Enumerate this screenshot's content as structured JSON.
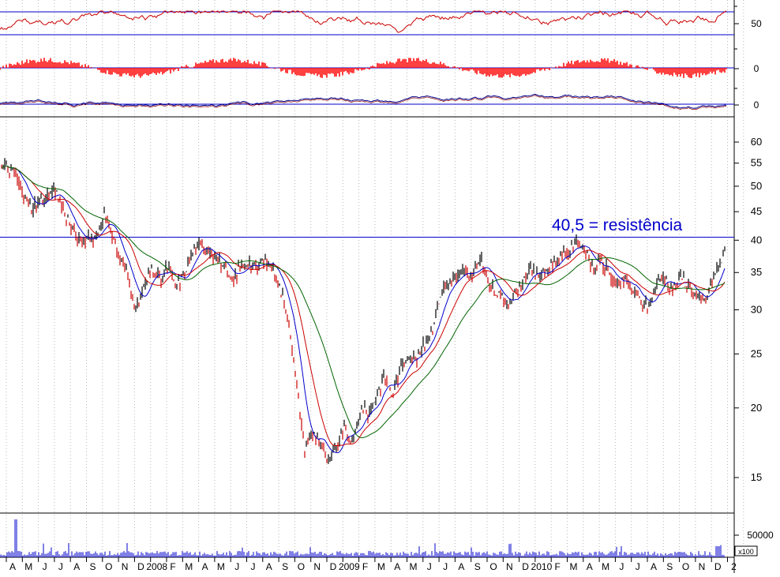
{
  "chart_data": {
    "type": "line",
    "annotation": "40,5 = resistência",
    "resistance_level": 40.5,
    "month_labels": [
      "A",
      "M",
      "J",
      "J",
      "A",
      "S",
      "O",
      "N",
      "D",
      "2008",
      "F",
      "M",
      "A",
      "M",
      "J",
      "J",
      "A",
      "S",
      "O",
      "N",
      "D",
      "2009",
      "F",
      "M",
      "A",
      "M",
      "J",
      "J",
      "A",
      "S",
      "O",
      "N",
      "D",
      "2010",
      "F",
      "M",
      "A",
      "M",
      "J",
      "J",
      "A",
      "S",
      "O",
      "N",
      "D",
      "2"
    ],
    "price_axis": {
      "scale": "log",
      "ticks": [
        60,
        55,
        50,
        45,
        40,
        35,
        30,
        25,
        20,
        15
      ],
      "tick_labels": [
        "60",
        "55",
        "50",
        "45",
        "40",
        "35",
        "30",
        "25",
        "20",
        "15"
      ]
    },
    "indicator_panels": [
      {
        "name": "oscillator",
        "tick_label": "50",
        "color": "#cc0000",
        "levels": [
          70,
          30
        ]
      },
      {
        "name": "histogram",
        "tick_label": "0",
        "color": "#ff0000"
      },
      {
        "name": "signal",
        "tick_label": "0",
        "color": "#00008b"
      }
    ],
    "volume_axis": {
      "tick_labels": [
        "50000"
      ],
      "multiplier_label": "x100"
    },
    "price_series": [
      {
        "m": 0,
        "v": 54.0
      },
      {
        "m": 0.5,
        "v": 52.5
      },
      {
        "m": 1,
        "v": 47.5
      },
      {
        "m": 1.5,
        "v": 45.8
      },
      {
        "m": 2,
        "v": 47.0
      },
      {
        "m": 2.5,
        "v": 47.5
      },
      {
        "m": 3,
        "v": 49.0
      },
      {
        "m": 3.5,
        "v": 45.0
      },
      {
        "m": 4,
        "v": 42.0
      },
      {
        "m": 4.5,
        "v": 39.8
      },
      {
        "m": 5,
        "v": 40.2
      },
      {
        "m": 5.5,
        "v": 40.8
      },
      {
        "m": 6,
        "v": 44.5
      },
      {
        "m": 6.5,
        "v": 41.0
      },
      {
        "m": 7,
        "v": 37.0
      },
      {
        "m": 7.5,
        "v": 34.5
      },
      {
        "m": 8,
        "v": 30.0
      },
      {
        "m": 8.5,
        "v": 33.0
      },
      {
        "m": 9,
        "v": 35.5
      },
      {
        "m": 9.5,
        "v": 34.0
      },
      {
        "m": 10,
        "v": 36.0
      },
      {
        "m": 10.5,
        "v": 32.8
      },
      {
        "m": 11,
        "v": 35.0
      },
      {
        "m": 11.5,
        "v": 38.0
      },
      {
        "m": 12,
        "v": 39.0
      },
      {
        "m": 12.5,
        "v": 38.5
      },
      {
        "m": 13,
        "v": 37.5
      },
      {
        "m": 13.5,
        "v": 35.5
      },
      {
        "m": 14,
        "v": 33.5
      },
      {
        "m": 14.5,
        "v": 36.0
      },
      {
        "m": 15,
        "v": 36.5
      },
      {
        "m": 15.5,
        "v": 35.5
      },
      {
        "m": 16,
        "v": 36.8
      },
      {
        "m": 16.5,
        "v": 36.0
      },
      {
        "m": 17,
        "v": 32.5
      },
      {
        "m": 17.5,
        "v": 29.0
      },
      {
        "m": 18,
        "v": 22.0
      },
      {
        "m": 18.5,
        "v": 17.0
      },
      {
        "m": 19,
        "v": 18.0
      },
      {
        "m": 19.5,
        "v": 17.5
      },
      {
        "m": 20,
        "v": 15.8
      },
      {
        "m": 20.5,
        "v": 17.0
      },
      {
        "m": 21,
        "v": 18.5
      },
      {
        "m": 21.5,
        "v": 17.2
      },
      {
        "m": 22,
        "v": 20.0
      },
      {
        "m": 22.5,
        "v": 19.5
      },
      {
        "m": 23,
        "v": 21.0
      },
      {
        "m": 23.5,
        "v": 23.0
      },
      {
        "m": 24,
        "v": 21.0
      },
      {
        "m": 24.5,
        "v": 23.5
      },
      {
        "m": 25,
        "v": 25.0
      },
      {
        "m": 25.5,
        "v": 24.5
      },
      {
        "m": 26,
        "v": 26.0
      },
      {
        "m": 26.5,
        "v": 28.0
      },
      {
        "m": 27,
        "v": 32.0
      },
      {
        "m": 27.5,
        "v": 33.5
      },
      {
        "m": 28,
        "v": 34.5
      },
      {
        "m": 28.5,
        "v": 35.0
      },
      {
        "m": 29,
        "v": 34.0
      },
      {
        "m": 29.5,
        "v": 37.5
      },
      {
        "m": 30,
        "v": 33.5
      },
      {
        "m": 30.5,
        "v": 32.0
      },
      {
        "m": 31,
        "v": 31.0
      },
      {
        "m": 31.5,
        "v": 31.5
      },
      {
        "m": 32,
        "v": 33.0
      },
      {
        "m": 32.5,
        "v": 35.5
      },
      {
        "m": 33,
        "v": 34.5
      },
      {
        "m": 33.5,
        "v": 35.0
      },
      {
        "m": 34,
        "v": 36.5
      },
      {
        "m": 34.5,
        "v": 37.5
      },
      {
        "m": 35,
        "v": 38.0
      },
      {
        "m": 35.5,
        "v": 40.0
      },
      {
        "m": 36,
        "v": 38.5
      },
      {
        "m": 36.5,
        "v": 35.5
      },
      {
        "m": 37,
        "v": 36.5
      },
      {
        "m": 37.5,
        "v": 35.0
      },
      {
        "m": 38,
        "v": 33.0
      },
      {
        "m": 38.5,
        "v": 34.0
      },
      {
        "m": 39,
        "v": 32.5
      },
      {
        "m": 39.5,
        "v": 31.0
      },
      {
        "m": 40,
        "v": 30.5
      },
      {
        "m": 40.5,
        "v": 33.5
      },
      {
        "m": 41,
        "v": 34.5
      },
      {
        "m": 41.5,
        "v": 32.5
      },
      {
        "m": 42,
        "v": 34.5
      },
      {
        "m": 42.5,
        "v": 33.0
      },
      {
        "m": 43,
        "v": 31.5
      },
      {
        "m": 43.5,
        "v": 31.0
      },
      {
        "m": 44,
        "v": 34.0
      },
      {
        "m": 44.5,
        "v": 36.5
      },
      {
        "m": 45,
        "v": 40.5
      }
    ]
  }
}
